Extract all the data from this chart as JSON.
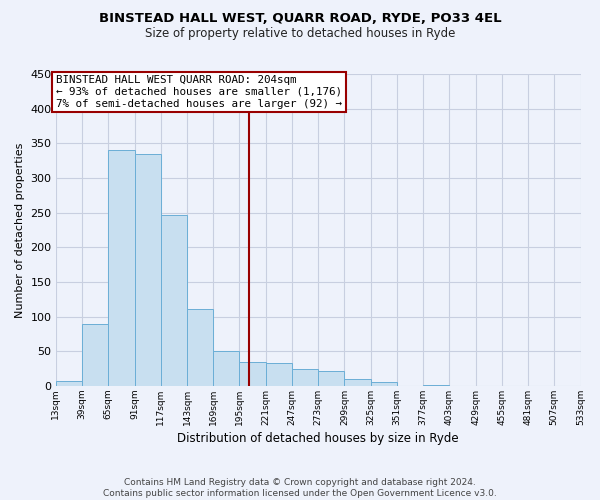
{
  "title": "BINSTEAD HALL WEST, QUARR ROAD, RYDE, PO33 4EL",
  "subtitle": "Size of property relative to detached houses in Ryde",
  "xlabel": "Distribution of detached houses by size in Ryde",
  "ylabel": "Number of detached properties",
  "bar_edges": [
    13,
    39,
    65,
    91,
    117,
    143,
    169,
    195,
    221,
    247,
    273,
    299,
    325,
    351,
    377,
    403,
    429,
    455,
    481,
    507,
    533
  ],
  "bar_heights": [
    7,
    90,
    340,
    335,
    246,
    111,
    50,
    35,
    33,
    25,
    21,
    10,
    5,
    0,
    2,
    0,
    0,
    0,
    0,
    0
  ],
  "bar_color": "#c8dff0",
  "bar_edgecolor": "#6baed6",
  "vline_x": 204,
  "vline_color": "#990000",
  "annotation_text": "BINSTEAD HALL WEST QUARR ROAD: 204sqm\n← 93% of detached houses are smaller (1,176)\n7% of semi-detached houses are larger (92) →",
  "ylim": [
    0,
    450
  ],
  "yticks": [
    0,
    50,
    100,
    150,
    200,
    250,
    300,
    350,
    400,
    450
  ],
  "footer_text": "Contains HM Land Registry data © Crown copyright and database right 2024.\nContains public sector information licensed under the Open Government Licence v3.0.",
  "title_fontsize": 9.5,
  "subtitle_fontsize": 8.5,
  "xlabel_fontsize": 8.5,
  "ylabel_fontsize": 8.0,
  "annotation_fontsize": 7.8,
  "footer_fontsize": 6.5,
  "bg_color": "#eef2fb",
  "grid_color": "#c8cfe0"
}
